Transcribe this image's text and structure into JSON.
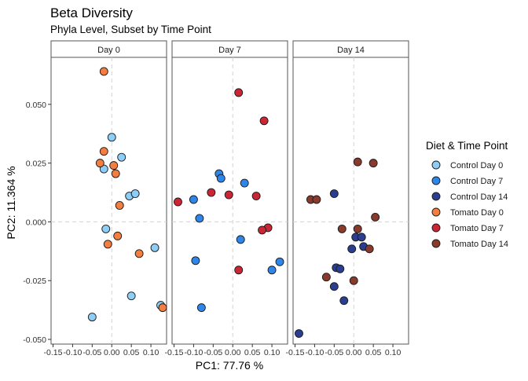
{
  "chart_data": {
    "type": "scatter",
    "title": "Beta Diversity",
    "subtitle": "Phyla Level, Subset by Time Point",
    "xlabel": "PC1:  77.76 %",
    "ylabel": "PC2:  11.364 %",
    "xlim": [
      -0.155,
      0.14
    ],
    "ylim": [
      -0.052,
      0.07
    ],
    "x_ticks": [
      -0.15,
      -0.1,
      -0.05,
      0.0,
      0.05,
      0.1
    ],
    "x_tick_labels": [
      "-0.15",
      "-0.10",
      "-0.05",
      "0.00",
      "0.05",
      "0.10"
    ],
    "y_ticks": [
      -0.05,
      -0.025,
      0.0,
      0.025,
      0.05
    ],
    "y_tick_labels": [
      "-0.050",
      "-0.025",
      "0.000",
      "0.025",
      "0.050"
    ],
    "reference_lines": {
      "x": 0,
      "y": 0
    },
    "grid": false,
    "legend": {
      "title": "Diet & Time Point",
      "placement": "right"
    },
    "series_colors": {
      "Control Day 0": "#8ecdf5",
      "Control Day 7": "#2f86ea",
      "Control Day 14": "#2b3d8f",
      "Tomato Day 0": "#f47e3f",
      "Tomato Day 7": "#cc2534",
      "Tomato Day 14": "#8a3a2c"
    },
    "panels": [
      {
        "label": "Day 0",
        "series": [
          {
            "name": "Control Day 0",
            "points": [
              [
                0.0,
                0.036
              ],
              [
                0.025,
                0.0275
              ],
              [
                -0.02,
                0.0225
              ],
              [
                0.045,
                0.011
              ],
              [
                0.06,
                0.012
              ],
              [
                -0.015,
                -0.003
              ],
              [
                -0.05,
                -0.0405
              ],
              [
                0.05,
                -0.0315
              ],
              [
                0.11,
                -0.011
              ],
              [
                0.125,
                -0.0355
              ]
            ]
          },
          {
            "name": "Tomato Day 0",
            "points": [
              [
                -0.02,
                0.064
              ],
              [
                -0.02,
                0.03
              ],
              [
                -0.03,
                0.025
              ],
              [
                0.005,
                0.024
              ],
              [
                0.01,
                0.0205
              ],
              [
                0.02,
                0.007
              ],
              [
                -0.01,
                -0.0095
              ],
              [
                0.015,
                -0.006
              ],
              [
                0.07,
                -0.0135
              ],
              [
                0.13,
                -0.0365
              ]
            ]
          }
        ]
      },
      {
        "label": "Day 7",
        "series": [
          {
            "name": "Control Day 7",
            "points": [
              [
                -0.035,
                0.0205
              ],
              [
                -0.03,
                0.0185
              ],
              [
                -0.1,
                0.0095
              ],
              [
                0.03,
                0.0165
              ],
              [
                -0.085,
                0.0015
              ],
              [
                0.02,
                -0.0075
              ],
              [
                -0.095,
                -0.0165
              ],
              [
                0.12,
                -0.017
              ],
              [
                0.1,
                -0.0205
              ],
              [
                -0.08,
                -0.0365
              ]
            ]
          },
          {
            "name": "Tomato Day 7",
            "points": [
              [
                0.015,
                0.055
              ],
              [
                0.08,
                0.043
              ],
              [
                -0.055,
                0.0125
              ],
              [
                -0.01,
                0.0115
              ],
              [
                0.06,
                0.011
              ],
              [
                -0.14,
                0.0085
              ],
              [
                0.09,
                -0.0025
              ],
              [
                0.075,
                -0.0035
              ],
              [
                0.015,
                -0.0205
              ]
            ]
          }
        ]
      },
      {
        "label": "Day 14",
        "series": [
          {
            "name": "Control Day 14",
            "points": [
              [
                -0.05,
                0.012
              ],
              [
                0.005,
                -0.0065
              ],
              [
                0.02,
                -0.0065
              ],
              [
                -0.005,
                -0.0115
              ],
              [
                0.025,
                -0.0105
              ],
              [
                -0.045,
                -0.0195
              ],
              [
                -0.035,
                -0.02
              ],
              [
                -0.05,
                -0.0275
              ],
              [
                -0.025,
                -0.0335
              ],
              [
                -0.14,
                -0.0475
              ]
            ]
          },
          {
            "name": "Tomato Day 14",
            "points": [
              [
                0.01,
                0.0255
              ],
              [
                0.05,
                0.025
              ],
              [
                -0.11,
                0.0095
              ],
              [
                -0.095,
                0.0095
              ],
              [
                0.055,
                0.002
              ],
              [
                -0.03,
                -0.003
              ],
              [
                0.01,
                -0.003
              ],
              [
                0.04,
                -0.0115
              ],
              [
                -0.07,
                -0.0235
              ],
              [
                0.0,
                -0.025
              ]
            ]
          }
        ]
      }
    ]
  }
}
